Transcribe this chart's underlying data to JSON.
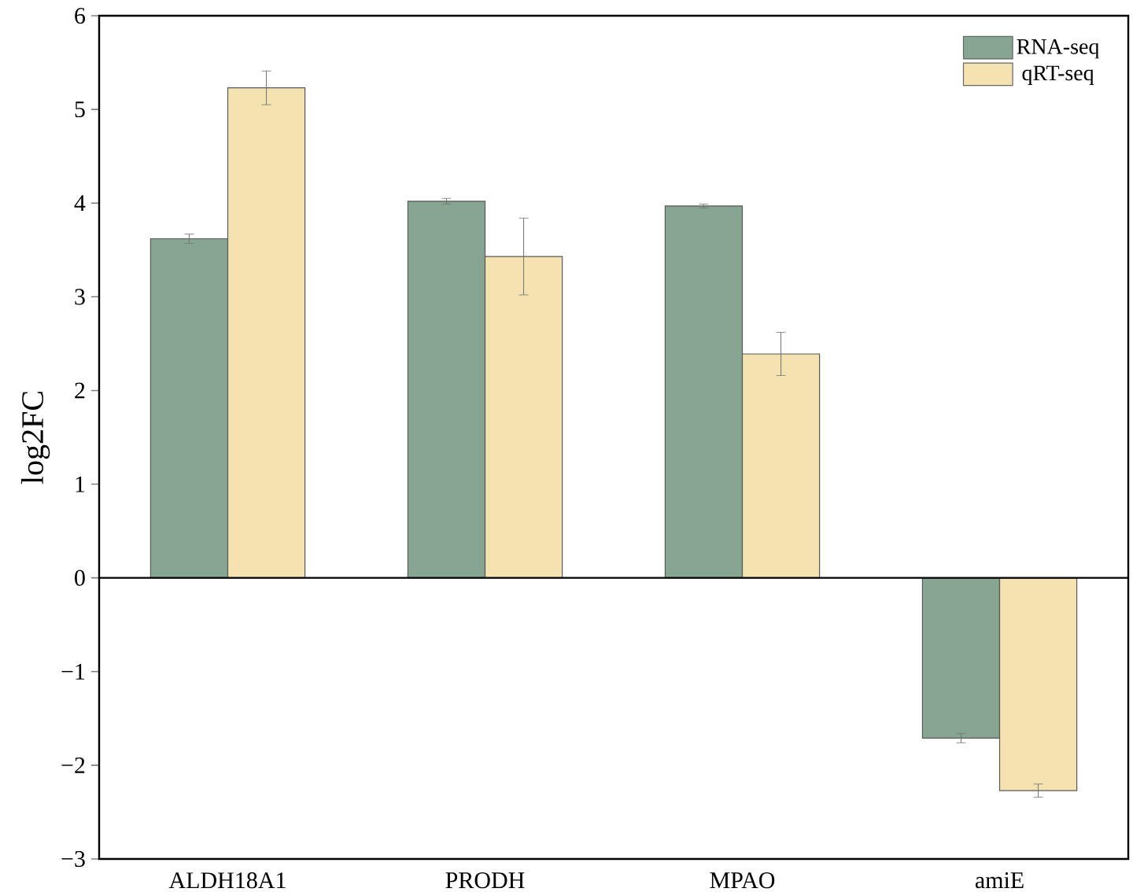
{
  "chart_data": {
    "type": "bar",
    "ylabel": "log2FC",
    "categories": [
      "ALDH18A1",
      "PRODH",
      "MPAO",
      "amiE"
    ],
    "series": [
      {
        "name": "RNA-seq",
        "color": "#87a692",
        "values": [
          3.62,
          4.02,
          3.97,
          -1.71
        ],
        "errors": [
          0.05,
          0.03,
          0.02,
          0.05
        ]
      },
      {
        "name": "qRT-seq",
        "color": "#f4e3b0",
        "values": [
          5.23,
          3.43,
          2.39,
          -2.27
        ],
        "errors": [
          0.18,
          0.41,
          0.23,
          0.07
        ]
      }
    ],
    "ylim": [
      -3,
      6
    ],
    "yticks": [
      {
        "value": -3,
        "label": "−3"
      },
      {
        "value": -2,
        "label": "−2"
      },
      {
        "value": -1,
        "label": "−1"
      },
      0,
      1,
      2,
      3,
      4,
      5,
      6
    ],
    "ref_lines": [
      {
        "axis": "y",
        "value": 0
      }
    ],
    "legend": "top right",
    "grid": false
  }
}
